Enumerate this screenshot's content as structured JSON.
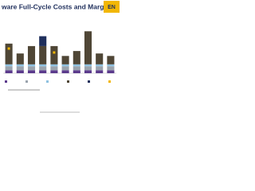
{
  "logo": "EN",
  "chart_data": {
    "type": "bar",
    "stacked": true,
    "title": "ware Full-Cycle Costs and Margin",
    "categories": [
      null,
      null,
      null,
      null,
      null,
      null,
      null,
      null,
      null,
      null
    ],
    "ylim": [
      0,
      100
    ],
    "series": [
      {
        "color": "#5b3a8c",
        "values": [
          6,
          6,
          6,
          6,
          6,
          6,
          6,
          6,
          6,
          6
        ]
      },
      {
        "color": "#9aa3ad",
        "values": [
          8,
          8,
          8,
          8,
          8,
          8,
          8,
          8,
          8,
          8
        ]
      },
      {
        "color": "#8fc1e0",
        "values": [
          4,
          4,
          4,
          4,
          4,
          4,
          4,
          4,
          4,
          4
        ]
      },
      {
        "color": "#4f4636",
        "values": [
          42,
          22,
          37,
          37,
          37,
          17,
          27,
          67,
          22,
          17
        ]
      },
      {
        "color": "#1f2f5c",
        "values": [
          null,
          null,
          null,
          20,
          null,
          null,
          null,
          null,
          null,
          null
        ]
      }
    ],
    "markers": {
      "color": "#f2b705",
      "values": [
        50,
        null,
        null,
        null,
        42,
        null,
        null,
        null,
        null,
        null
      ]
    }
  }
}
